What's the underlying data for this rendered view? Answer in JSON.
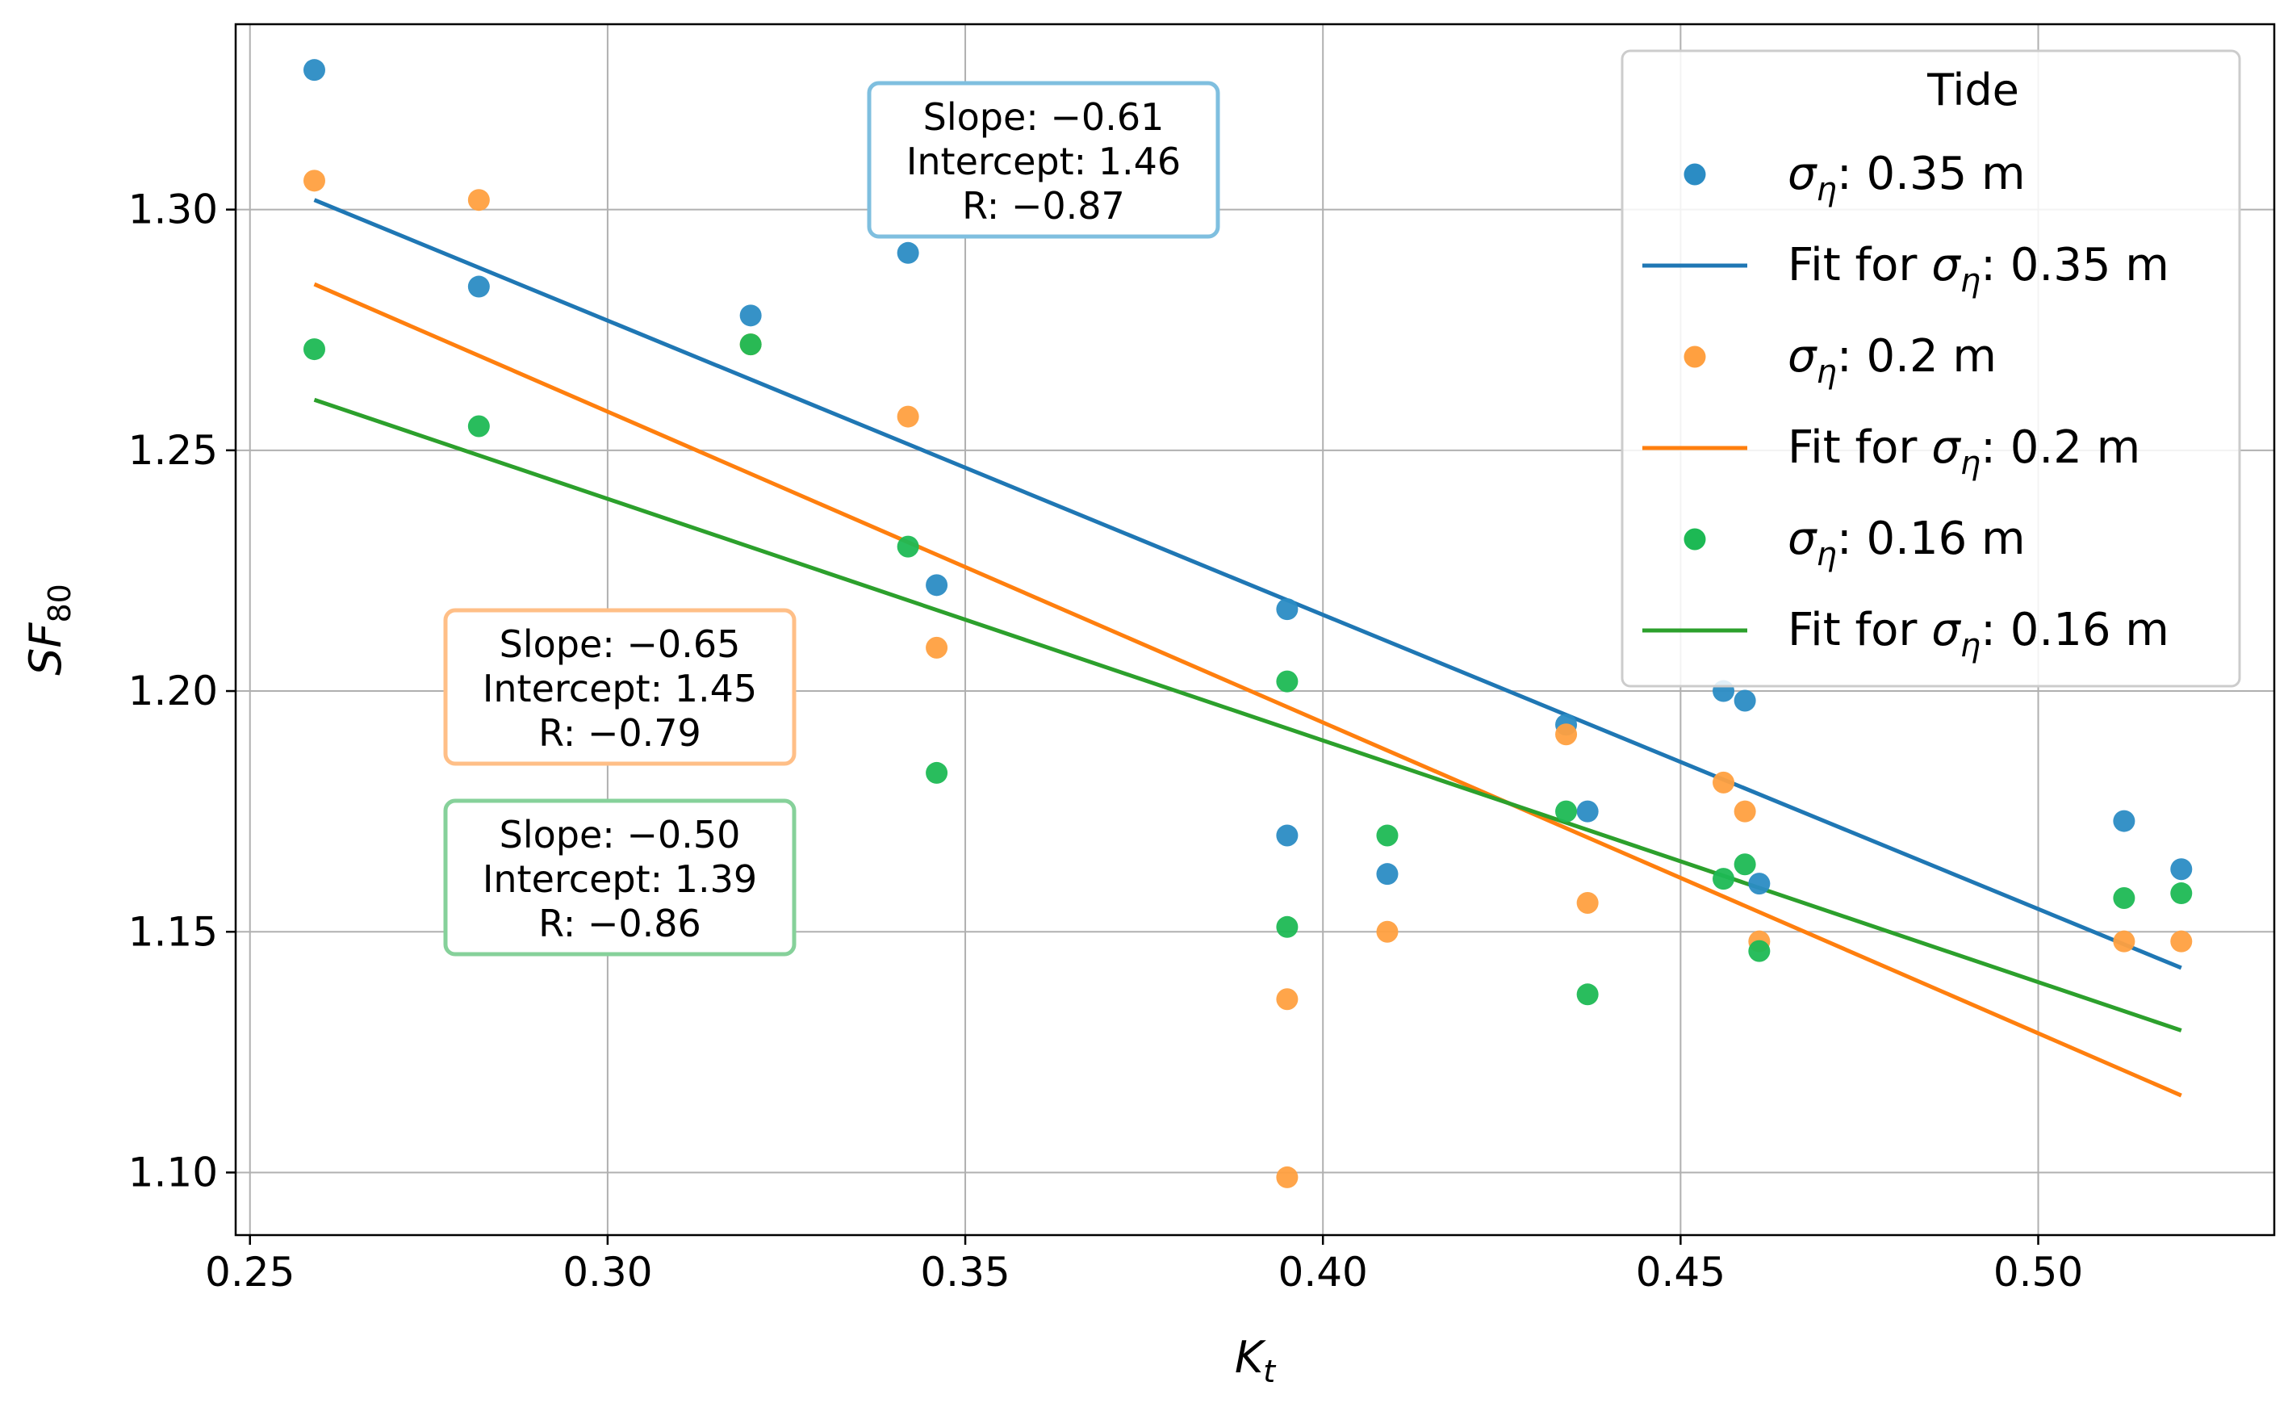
{
  "chart_data": {
    "type": "scatter",
    "xlabel": "K",
    "xlabel_sub": "t",
    "ylabel": "SF",
    "ylabel_sub": "80",
    "xlim": [
      0.248,
      0.533
    ],
    "ylim": [
      1.087,
      1.3385
    ],
    "xticks": [
      0.25,
      0.3,
      0.35,
      0.4,
      0.45,
      0.5
    ],
    "xtick_labels": [
      "0.25",
      "0.30",
      "0.35",
      "0.40",
      "0.45",
      "0.50"
    ],
    "yticks": [
      1.1,
      1.15,
      1.2,
      1.25,
      1.3
    ],
    "ytick_labels": [
      "1.10",
      "1.15",
      "1.20",
      "1.25",
      "1.30"
    ],
    "grid": true,
    "legend": {
      "title": "Tide",
      "placement": "top-right",
      "entries": [
        {
          "kind": "marker",
          "series": 0,
          "prefix": "σ",
          "sub": "η",
          "suffix": ": 0.35 m"
        },
        {
          "kind": "line",
          "series": 0,
          "prefix": "Fit for σ",
          "sub": "η",
          "suffix": ": 0.35 m"
        },
        {
          "kind": "marker",
          "series": 1,
          "prefix": "σ",
          "sub": "η",
          "suffix": ": 0.2 m"
        },
        {
          "kind": "line",
          "series": 1,
          "prefix": "Fit for σ",
          "sub": "η",
          "suffix": ": 0.2 m"
        },
        {
          "kind": "marker",
          "series": 2,
          "prefix": "σ",
          "sub": "η",
          "suffix": ": 0.16 m"
        },
        {
          "kind": "line",
          "series": 2,
          "prefix": "Fit for σ",
          "sub": "η",
          "suffix": ": 0.16 m"
        }
      ]
    },
    "series": [
      {
        "name": "σ_η: 0.35 m",
        "color": "#1f77b4",
        "point_color": "#2b8cc4",
        "points": [
          [
            0.259,
            1.329
          ],
          [
            0.282,
            1.284
          ],
          [
            0.32,
            1.278
          ],
          [
            0.342,
            1.291
          ],
          [
            0.346,
            1.222
          ],
          [
            0.395,
            1.217
          ],
          [
            0.395,
            1.17
          ],
          [
            0.409,
            1.162
          ],
          [
            0.434,
            1.193
          ],
          [
            0.437,
            1.175
          ],
          [
            0.456,
            1.2
          ],
          [
            0.459,
            1.198
          ],
          [
            0.461,
            1.16
          ],
          [
            0.512,
            1.173
          ],
          [
            0.52,
            1.163
          ]
        ],
        "fit": {
          "x": [
            0.259,
            0.52
          ],
          "y": [
            1.302,
            1.1425
          ]
        },
        "stats": [
          "Slope: −0.61",
          "Intercept: 1.46",
          "R: −0.87"
        ],
        "box_border": "#7fbfdf"
      },
      {
        "name": "σ_η: 0.2 m",
        "color": "#ff7f0e",
        "point_color": "#ffa040",
        "points": [
          [
            0.259,
            1.306
          ],
          [
            0.282,
            1.302
          ],
          [
            0.32,
            1.272
          ],
          [
            0.342,
            1.257
          ],
          [
            0.346,
            1.209
          ],
          [
            0.395,
            1.136
          ],
          [
            0.395,
            1.099
          ],
          [
            0.409,
            1.15
          ],
          [
            0.434,
            1.191
          ],
          [
            0.437,
            1.156
          ],
          [
            0.456,
            1.181
          ],
          [
            0.459,
            1.175
          ],
          [
            0.461,
            1.148
          ],
          [
            0.512,
            1.148
          ],
          [
            0.52,
            1.148
          ]
        ],
        "fit": {
          "x": [
            0.259,
            0.52
          ],
          "y": [
            1.2845,
            1.116
          ]
        },
        "stats": [
          "Slope: −0.65",
          "Intercept: 1.45",
          "R: −0.79"
        ],
        "box_border": "#ffbf87"
      },
      {
        "name": "σ_η: 0.16 m",
        "color": "#2ca02c",
        "point_color": "#1db954",
        "points": [
          [
            0.259,
            1.271
          ],
          [
            0.282,
            1.255
          ],
          [
            0.32,
            1.272
          ],
          [
            0.342,
            1.23
          ],
          [
            0.346,
            1.183
          ],
          [
            0.395,
            1.202
          ],
          [
            0.395,
            1.151
          ],
          [
            0.409,
            1.17
          ],
          [
            0.434,
            1.175
          ],
          [
            0.437,
            1.137
          ],
          [
            0.456,
            1.161
          ],
          [
            0.459,
            1.164
          ],
          [
            0.461,
            1.146
          ],
          [
            0.512,
            1.157
          ],
          [
            0.52,
            1.158
          ]
        ],
        "fit": {
          "x": [
            0.259,
            0.52
          ],
          "y": [
            1.2605,
            1.1295
          ]
        },
        "stats": [
          "Slope: −0.50",
          "Intercept: 1.39",
          "R: −0.86"
        ],
        "box_border": "#86d19a"
      }
    ]
  }
}
